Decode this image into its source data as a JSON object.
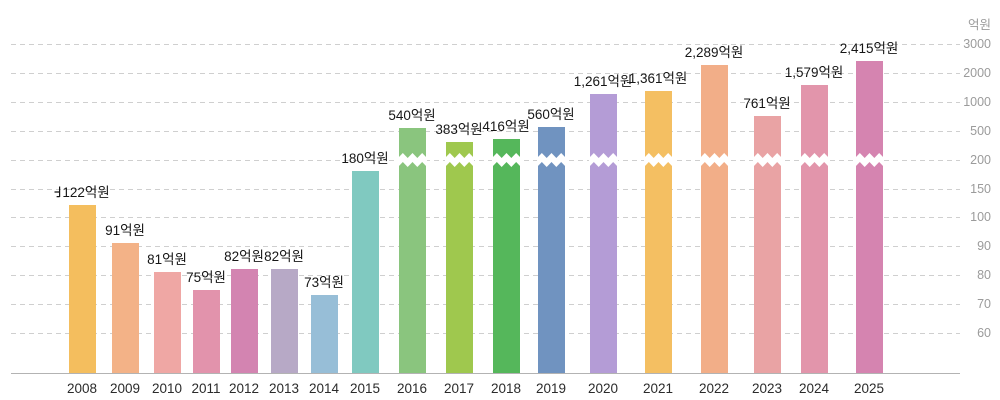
{
  "axis": {
    "unit_label": "억원",
    "ticks": [
      60,
      70,
      80,
      90,
      100,
      150,
      200,
      500,
      1000,
      2000,
      3000
    ],
    "grid_color": "#cfcfcf",
    "tick_color": "#9b9b9b",
    "baseline_color": "#b3b3b3"
  },
  "chart_data": {
    "type": "bar",
    "title": "",
    "xlabel": "",
    "ylabel": "억원",
    "legend": "none",
    "grid": "dashed horizontal",
    "axis_side": "right",
    "scale_note": "non-linear compressed axis: 60,70,80,90,100,150,200,500,1000,2000,3000 evenly spaced; bars taller than 200 drawn with white zigzag axis-break",
    "break_above_value": 200,
    "clipped_glyph_before_first_label": true,
    "categories": [
      "2008",
      "2009",
      "2010",
      "2011",
      "2012",
      "2013",
      "2014",
      "2015",
      "2016",
      "2017",
      "2018",
      "2019",
      "2020",
      "2021",
      "2022",
      "2023",
      "2024",
      "2025"
    ],
    "values": [
      122,
      91,
      81,
      75,
      82,
      82,
      73,
      180,
      540,
      383,
      416,
      560,
      1261,
      1361,
      2289,
      761,
      1579,
      2415
    ],
    "value_labels": [
      "122억원",
      "91억원",
      "81억원",
      "75억원",
      "82억원",
      "82억원",
      "73억원",
      "180억원",
      "540억원",
      "383억원",
      "416억원",
      "560억원",
      "1,261억원",
      "1,361억원",
      "2,289억원",
      "761억원",
      "1,579억원",
      "2,415억원"
    ],
    "bar_colors": [
      "#F4BE5E",
      "#F3B287",
      "#EFA7A4",
      "#E293AC",
      "#D384B1",
      "#B7A9C6",
      "#97BED7",
      "#80C9C0",
      "#8AC57E",
      "#9FC84E",
      "#55B75B",
      "#7093C0",
      "#B49CD6",
      "#F4BF62",
      "#F2AE88",
      "#E9A3A4",
      "#E295AB",
      "#D584B0"
    ],
    "label_color": "#161616",
    "category_label_color": "#2b2b2b"
  }
}
